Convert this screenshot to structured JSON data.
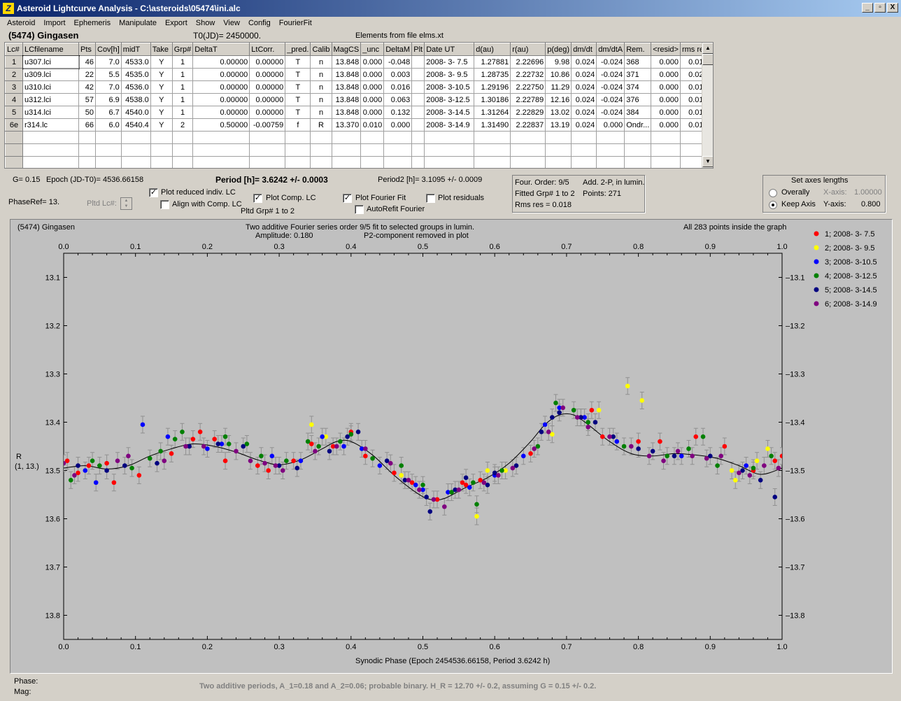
{
  "window": {
    "title": "Asteroid Lightcurve Analysis - C:\\asteroids\\05474\\ini.alc",
    "buttons": [
      "_",
      "▫",
      "X"
    ]
  },
  "menu": [
    "Asteroid",
    "Import",
    "Ephemeris",
    "Manipulate",
    "Export",
    "Show",
    "View",
    "Config",
    "FourierFit"
  ],
  "header": {
    "asteroid": "(5474) Gingasen",
    "t0": "T0(JD)= 2450000.",
    "elements": "Elements from file elms.xt"
  },
  "grid": {
    "columns": [
      "Lc#",
      "LCfilename",
      "Pts",
      "Cov[h]",
      "midT",
      "Take",
      "Grp#",
      "DeltaT",
      "LtCorr.",
      "_pred.",
      "Calib",
      "MagCS",
      "_unc",
      "DeltaM",
      "Plt",
      "Date UT",
      "d(au)",
      "r(au)",
      "p(deg)",
      "dm/dt",
      "dm/dtA",
      "Rem.",
      "<resid>",
      "rms res"
    ],
    "rows": [
      [
        "1",
        "u307.lci",
        "46",
        "7.0",
        "4533.0",
        "Y",
        "1",
        "0.00000",
        "0.00000",
        "T",
        "n",
        "13.848",
        "0.000",
        "-0.048",
        "",
        "2008- 3- 7.5",
        "1.27881",
        "2.22696",
        "9.98",
        "0.024",
        "-0.024",
        "368",
        "0.000",
        "0.018"
      ],
      [
        "2",
        "u309.lci",
        "22",
        "5.5",
        "4535.0",
        "Y",
        "1",
        "0.00000",
        "0.00000",
        "T",
        "n",
        "13.848",
        "0.000",
        "0.003",
        "",
        "2008- 3- 9.5",
        "1.28735",
        "2.22732",
        "10.86",
        "0.024",
        "-0.024",
        "371",
        "0.000",
        "0.020"
      ],
      [
        "3",
        "u310.lci",
        "42",
        "7.0",
        "4536.0",
        "Y",
        "1",
        "0.00000",
        "0.00000",
        "T",
        "n",
        "13.848",
        "0.000",
        "0.016",
        "",
        "2008- 3-10.5",
        "1.29196",
        "2.22750",
        "11.29",
        "0.024",
        "-0.024",
        "374",
        "0.000",
        "0.016"
      ],
      [
        "4",
        "u312.lci",
        "57",
        "6.9",
        "4538.0",
        "Y",
        "1",
        "0.00000",
        "0.00000",
        "T",
        "n",
        "13.848",
        "0.000",
        "0.063",
        "",
        "2008- 3-12.5",
        "1.30186",
        "2.22789",
        "12.16",
        "0.024",
        "-0.024",
        "376",
        "0.000",
        "0.018"
      ],
      [
        "5",
        "u314.lci",
        "50",
        "6.7",
        "4540.0",
        "Y",
        "1",
        "0.00000",
        "0.00000",
        "T",
        "n",
        "13.848",
        "0.000",
        "0.132",
        "",
        "2008- 3-14.5",
        "1.31264",
        "2.22829",
        "13.02",
        "0.024",
        "-0.024",
        "384",
        "0.000",
        "0.018"
      ],
      [
        "6e",
        "r314.lc",
        "66",
        "6.0",
        "4540.4",
        "Y",
        "2",
        "0.50000",
        "-0.00759",
        "f",
        "R",
        "13.370",
        "0.010",
        "0.000",
        "",
        "2008- 3-14.9",
        "1.31490",
        "2.22837",
        "13.19",
        "0.024",
        "0.000",
        "Ondr...",
        "0.000",
        "0.015"
      ]
    ]
  },
  "info": {
    "g": "G= 0.15",
    "epoch": "Epoch (JD-T0)= 4536.66158",
    "period": "Period [h]= 3.6242 +/- 0.0003",
    "period2": "Period2 [h]= 3.1095 +/- 0.0009",
    "phaseref": "PhaseRef= 13.",
    "pltd_lc": "Pltd Lc#:",
    "pltd_grp": "Pltd Grp#  1   to   2"
  },
  "checkboxes": {
    "reduced": {
      "label": "Plot reduced indiv. LC",
      "checked": true
    },
    "align": {
      "label": "Align with Comp. LC",
      "checked": false
    },
    "comp": {
      "label": "Plot Comp. LC",
      "checked": true
    },
    "fourier": {
      "label": "Plot Fourier Fit",
      "checked": true
    },
    "autorefit": {
      "label": "AutoRefit Fourier",
      "checked": false
    },
    "residuals": {
      "label": "Plot residuals",
      "checked": false
    }
  },
  "fourier_box": {
    "order": "Four. Order:  9/5",
    "add": "Add. 2-P, in lumin.",
    "fitted": "Fitted Grp# 1 to 2",
    "points": "Points: 271",
    "rms": "Rms res     = 0.018"
  },
  "axes_box": {
    "title": "Set axes lengths",
    "overally": "Overally",
    "keep": "Keep Axis",
    "xaxis_label": "X-axis:",
    "xaxis_val": "1.00000",
    "yaxis_label": "Y-axis:",
    "yaxis_val": "0.800"
  },
  "plot": {
    "name": "(5474) Gingasen",
    "title1": "Two additive Fourier series order 9/5 fit to selected groups in lumin.",
    "title2a": "Amplitude: 0.180",
    "title2b": "P2-component removed in plot",
    "points_note": "All 283 points inside the graph",
    "ylabel1": "R",
    "ylabel2": "(1, 13.)",
    "xlabel": "Synodic Phase (Epoch 2454536.66158, Period 3.6242 h)"
  },
  "chart_data": {
    "type": "scatter",
    "x_ticks": [
      "0.0",
      "0.1",
      "0.2",
      "0.3",
      "0.4",
      "0.5",
      "0.6",
      "0.7",
      "0.8",
      "0.9",
      "1.0"
    ],
    "y_ticks": [
      "13.1",
      "13.2",
      "13.3",
      "13.4",
      "13.5",
      "13.6",
      "13.7",
      "13.8"
    ],
    "xlim": [
      0,
      1
    ],
    "ylim": [
      13.05,
      13.85
    ],
    "y_inverted": true,
    "legend": [
      {
        "label": "1; 2008- 3- 7.5",
        "color": "#ff0000"
      },
      {
        "label": "2; 2008- 3- 9.5",
        "color": "#ffff00"
      },
      {
        "label": "3; 2008- 3-10.5",
        "color": "#0000ff"
      },
      {
        "label": "4; 2008- 3-12.5",
        "color": "#008000"
      },
      {
        "label": "5; 2008- 3-14.5",
        "color": "#000080"
      },
      {
        "label": "6; 2008- 3-14.9",
        "color": "#800080"
      }
    ],
    "fit_curve": {
      "x": [
        0.0,
        0.03,
        0.06,
        0.09,
        0.12,
        0.15,
        0.18,
        0.21,
        0.24,
        0.27,
        0.3,
        0.33,
        0.36,
        0.38,
        0.4,
        0.43,
        0.46,
        0.49,
        0.51,
        0.53,
        0.56,
        0.59,
        0.62,
        0.65,
        0.67,
        0.69,
        0.71,
        0.73,
        0.76,
        0.79,
        0.82,
        0.85,
        0.88,
        0.91,
        0.94,
        0.97,
        1.0
      ],
      "y": [
        13.495,
        13.49,
        13.497,
        13.49,
        13.47,
        13.455,
        13.445,
        13.45,
        13.462,
        13.478,
        13.488,
        13.478,
        13.455,
        13.44,
        13.44,
        13.468,
        13.51,
        13.545,
        13.56,
        13.558,
        13.535,
        13.515,
        13.485,
        13.44,
        13.405,
        13.385,
        13.385,
        13.405,
        13.44,
        13.465,
        13.47,
        13.465,
        13.468,
        13.475,
        13.49,
        13.508,
        13.495
      ]
    },
    "series": [
      {
        "name": "1; 2008- 3- 7.5",
        "points": [
          [
            0.005,
            13.48
          ],
          [
            0.02,
            13.505
          ],
          [
            0.035,
            13.49
          ],
          [
            0.06,
            13.485
          ],
          [
            0.07,
            13.525
          ],
          [
            0.105,
            13.51
          ],
          [
            0.15,
            13.465
          ],
          [
            0.18,
            13.435
          ],
          [
            0.19,
            13.42
          ],
          [
            0.21,
            13.435
          ],
          [
            0.225,
            13.48
          ],
          [
            0.27,
            13.49
          ],
          [
            0.285,
            13.5
          ],
          [
            0.32,
            13.48
          ],
          [
            0.345,
            13.445
          ],
          [
            0.375,
            13.45
          ],
          [
            0.4,
            13.42
          ],
          [
            0.42,
            13.47
          ],
          [
            0.46,
            13.505
          ],
          [
            0.485,
            13.525
          ],
          [
            0.52,
            13.56
          ],
          [
            0.555,
            13.525
          ],
          [
            0.56,
            13.53
          ],
          [
            0.58,
            13.52
          ],
          [
            0.65,
            13.465
          ],
          [
            0.72,
            13.39
          ],
          [
            0.735,
            13.375
          ],
          [
            0.75,
            13.43
          ],
          [
            0.8,
            13.44
          ],
          [
            0.83,
            13.44
          ],
          [
            0.88,
            13.43
          ],
          [
            0.92,
            13.45
          ],
          [
            0.96,
            13.5
          ],
          [
            0.99,
            13.48
          ],
          [
            1.0,
            13.47
          ]
        ]
      },
      {
        "name": "2; 2008- 3- 9.5",
        "points": [
          [
            0.345,
            13.405
          ],
          [
            0.365,
            13.43
          ],
          [
            0.47,
            13.51
          ],
          [
            0.575,
            13.595
          ],
          [
            0.59,
            13.5
          ],
          [
            0.615,
            13.5
          ],
          [
            0.68,
            13.425
          ],
          [
            0.745,
            13.375
          ],
          [
            0.785,
            13.325
          ],
          [
            0.805,
            13.355
          ],
          [
            0.93,
            13.5
          ],
          [
            0.935,
            13.52
          ],
          [
            0.965,
            13.48
          ],
          [
            0.98,
            13.455
          ]
        ]
      },
      {
        "name": "3; 2008- 3-10.5",
        "points": [
          [
            0.03,
            13.5
          ],
          [
            0.045,
            13.525
          ],
          [
            0.11,
            13.405
          ],
          [
            0.145,
            13.43
          ],
          [
            0.2,
            13.455
          ],
          [
            0.22,
            13.445
          ],
          [
            0.29,
            13.47
          ],
          [
            0.33,
            13.48
          ],
          [
            0.36,
            13.43
          ],
          [
            0.39,
            13.45
          ],
          [
            0.415,
            13.455
          ],
          [
            0.44,
            13.49
          ],
          [
            0.49,
            13.53
          ],
          [
            0.5,
            13.54
          ],
          [
            0.535,
            13.545
          ],
          [
            0.565,
            13.535
          ],
          [
            0.6,
            13.51
          ],
          [
            0.64,
            13.47
          ],
          [
            0.67,
            13.405
          ],
          [
            0.69,
            13.37
          ],
          [
            0.725,
            13.39
          ],
          [
            0.77,
            13.44
          ],
          [
            0.86,
            13.47
          ],
          [
            0.95,
            13.49
          ]
        ]
      },
      {
        "name": "4; 2008- 3-12.5",
        "points": [
          [
            0.01,
            13.52
          ],
          [
            0.04,
            13.48
          ],
          [
            0.05,
            13.49
          ],
          [
            0.095,
            13.495
          ],
          [
            0.12,
            13.475
          ],
          [
            0.135,
            13.46
          ],
          [
            0.155,
            13.435
          ],
          [
            0.165,
            13.42
          ],
          [
            0.225,
            13.43
          ],
          [
            0.23,
            13.445
          ],
          [
            0.255,
            13.445
          ],
          [
            0.275,
            13.47
          ],
          [
            0.31,
            13.48
          ],
          [
            0.34,
            13.44
          ],
          [
            0.355,
            13.45
          ],
          [
            0.385,
            13.44
          ],
          [
            0.4,
            13.425
          ],
          [
            0.43,
            13.475
          ],
          [
            0.47,
            13.49
          ],
          [
            0.5,
            13.53
          ],
          [
            0.54,
            13.545
          ],
          [
            0.57,
            13.525
          ],
          [
            0.575,
            13.57
          ],
          [
            0.61,
            13.5
          ],
          [
            0.66,
            13.45
          ],
          [
            0.685,
            13.36
          ],
          [
            0.71,
            13.375
          ],
          [
            0.73,
            13.4
          ],
          [
            0.78,
            13.45
          ],
          [
            0.84,
            13.47
          ],
          [
            0.87,
            13.455
          ],
          [
            0.89,
            13.43
          ],
          [
            0.91,
            13.49
          ],
          [
            0.96,
            13.495
          ],
          [
            0.985,
            13.47
          ]
        ]
      },
      {
        "name": "5; 2008- 3-14.5",
        "points": [
          [
            0.02,
            13.49
          ],
          [
            0.06,
            13.5
          ],
          [
            0.085,
            13.49
          ],
          [
            0.13,
            13.485
          ],
          [
            0.175,
            13.45
          ],
          [
            0.215,
            13.445
          ],
          [
            0.25,
            13.45
          ],
          [
            0.3,
            13.49
          ],
          [
            0.325,
            13.495
          ],
          [
            0.37,
            13.46
          ],
          [
            0.395,
            13.43
          ],
          [
            0.41,
            13.42
          ],
          [
            0.45,
            13.48
          ],
          [
            0.475,
            13.52
          ],
          [
            0.505,
            13.555
          ],
          [
            0.51,
            13.585
          ],
          [
            0.545,
            13.54
          ],
          [
            0.56,
            13.515
          ],
          [
            0.59,
            13.53
          ],
          [
            0.6,
            13.505
          ],
          [
            0.63,
            13.49
          ],
          [
            0.665,
            13.42
          ],
          [
            0.68,
            13.39
          ],
          [
            0.69,
            13.38
          ],
          [
            0.72,
            13.39
          ],
          [
            0.74,
            13.4
          ],
          [
            0.765,
            13.43
          ],
          [
            0.8,
            13.455
          ],
          [
            0.82,
            13.46
          ],
          [
            0.85,
            13.47
          ],
          [
            0.9,
            13.47
          ],
          [
            0.945,
            13.5
          ],
          [
            0.97,
            13.52
          ],
          [
            0.99,
            13.555
          ]
        ]
      },
      {
        "name": "6; 2008- 3-14.9",
        "points": [
          [
            0.0,
            13.485
          ],
          [
            0.015,
            13.51
          ],
          [
            0.075,
            13.48
          ],
          [
            0.09,
            13.47
          ],
          [
            0.14,
            13.48
          ],
          [
            0.17,
            13.45
          ],
          [
            0.195,
            13.45
          ],
          [
            0.24,
            13.46
          ],
          [
            0.26,
            13.48
          ],
          [
            0.28,
            13.485
          ],
          [
            0.295,
            13.49
          ],
          [
            0.305,
            13.5
          ],
          [
            0.35,
            13.46
          ],
          [
            0.38,
            13.45
          ],
          [
            0.42,
            13.455
          ],
          [
            0.455,
            13.485
          ],
          [
            0.48,
            13.52
          ],
          [
            0.495,
            13.54
          ],
          [
            0.515,
            13.56
          ],
          [
            0.53,
            13.575
          ],
          [
            0.55,
            13.54
          ],
          [
            0.585,
            13.525
          ],
          [
            0.605,
            13.51
          ],
          [
            0.625,
            13.495
          ],
          [
            0.655,
            13.455
          ],
          [
            0.675,
            13.42
          ],
          [
            0.695,
            13.37
          ],
          [
            0.715,
            13.39
          ],
          [
            0.73,
            13.41
          ],
          [
            0.76,
            13.43
          ],
          [
            0.79,
            13.45
          ],
          [
            0.815,
            13.47
          ],
          [
            0.835,
            13.48
          ],
          [
            0.855,
            13.46
          ],
          [
            0.875,
            13.47
          ],
          [
            0.895,
            13.475
          ],
          [
            0.915,
            13.47
          ],
          [
            0.94,
            13.505
          ],
          [
            0.955,
            13.51
          ],
          [
            0.975,
            13.49
          ],
          [
            0.995,
            13.495
          ]
        ]
      }
    ]
  },
  "status": {
    "phase": "Phase:",
    "mag": "Mag:",
    "note": "Two additive periods, A_1=0.18 and A_2=0.06; probable binary. H_R = 12.70 +/- 0.2, assuming G = 0.15 +/- 0.2."
  }
}
